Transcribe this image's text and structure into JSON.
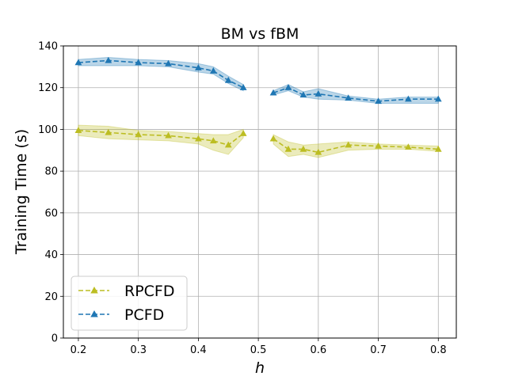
{
  "chart_data": {
    "type": "line",
    "title": "BM vs fBM",
    "xlabel": "h",
    "ylabel": "Training Time (s)",
    "xlim": [
      0.175,
      0.83
    ],
    "ylim": [
      0,
      140
    ],
    "xticks": [
      0.2,
      0.3,
      0.4,
      0.5,
      0.6,
      0.7,
      0.8
    ],
    "xtick_labels": [
      "0.2",
      "0.3",
      "0.4",
      "0.5",
      "0.6",
      "0.7",
      "0.8"
    ],
    "yticks": [
      0,
      20,
      40,
      60,
      80,
      100,
      120,
      140
    ],
    "ytick_labels": [
      "0",
      "20",
      "40",
      "60",
      "80",
      "100",
      "120",
      "140"
    ],
    "grid": true,
    "legend_position": "lower-left",
    "series": [
      {
        "name": "RPCFD",
        "color": "#bcbd22",
        "marker": "triangle-up",
        "linestyle": "dashed",
        "segments": [
          {
            "x": [
              0.2,
              0.25,
              0.3,
              0.35,
              0.4,
              0.425,
              0.45,
              0.475
            ],
            "y": [
              99.5,
              98.5,
              97.5,
              97.0,
              95.5,
              94.5,
              92.5,
              98.0
            ],
            "lower": [
              97.0,
              95.5,
              95.0,
              94.5,
              93.0,
              90.0,
              88.0,
              96.0
            ],
            "upper": [
              102.0,
              101.5,
              99.5,
              99.0,
              98.0,
              97.5,
              97.5,
              100.0
            ]
          },
          {
            "x": [
              0.525,
              0.55,
              0.575,
              0.6,
              0.65,
              0.7,
              0.75,
              0.8
            ],
            "y": [
              95.5,
              90.5,
              90.5,
              89.0,
              92.5,
              92.0,
              91.5,
              90.5
            ],
            "lower": [
              93.0,
              87.0,
              88.0,
              86.5,
              90.0,
              90.5,
              90.5,
              89.5
            ],
            "upper": [
              97.5,
              94.0,
              92.5,
              93.0,
              94.0,
              93.0,
              92.5,
              92.0
            ]
          }
        ]
      },
      {
        "name": "PCFD",
        "color": "#1f77b4",
        "marker": "triangle-up",
        "linestyle": "dashed",
        "segments": [
          {
            "x": [
              0.2,
              0.25,
              0.3,
              0.35,
              0.4,
              0.425,
              0.45,
              0.475
            ],
            "y": [
              132.0,
              133.0,
              132.0,
              131.5,
              129.5,
              128.0,
              123.5,
              120.0
            ],
            "lower": [
              130.5,
              130.5,
              130.5,
              130.0,
              127.5,
              126.5,
              122.0,
              118.5
            ],
            "upper": [
              133.5,
              134.5,
              133.5,
              133.0,
              131.5,
              130.0,
              125.5,
              121.5
            ]
          },
          {
            "x": [
              0.525,
              0.55,
              0.575,
              0.6,
              0.65,
              0.7,
              0.75,
              0.8
            ],
            "y": [
              117.5,
              120.0,
              116.5,
              117.0,
              115.0,
              113.5,
              114.5,
              114.5
            ],
            "lower": [
              116.5,
              118.5,
              115.5,
              114.5,
              114.0,
              112.5,
              112.5,
              112.5
            ],
            "upper": [
              118.5,
              121.5,
              118.0,
              119.5,
              116.0,
              114.5,
              115.5,
              115.5
            ]
          }
        ]
      }
    ]
  }
}
